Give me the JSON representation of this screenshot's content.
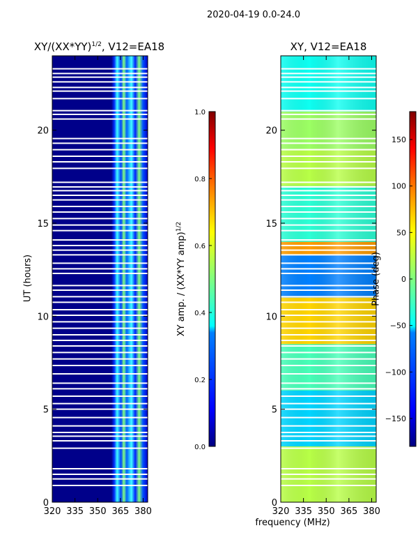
{
  "figure_title": "2020-04-19 0.0-24.0",
  "colors": {
    "jet_stops": [
      "#000080",
      "#0000ff",
      "#0080ff",
      "#00ffff",
      "#80ff80",
      "#ffff00",
      "#ff8000",
      "#ff0000",
      "#800000"
    ],
    "background": "#ffffff",
    "frame": "#000000",
    "flag": "#ffffff"
  },
  "chart_data": [
    {
      "type": "heatmap",
      "title_main": "XY/(XX*YY)",
      "title_sup": "1/2",
      "title_rest": ", V12=EA18",
      "xlabel": "",
      "ylabel": "UT (hours)",
      "xlim": [
        320,
        383
      ],
      "ylim": [
        0,
        24
      ],
      "xticks": [
        320,
        335,
        350,
        365,
        380
      ],
      "yticks": [
        0,
        5,
        10,
        15,
        20
      ],
      "colorbar": {
        "label_main": "XY amp. / (XX*YY amp)",
        "label_sup": "1/2",
        "vmin": 0.0,
        "vmax": 1.0,
        "ticks": [
          "0.0",
          "0.2",
          "0.4",
          "0.6",
          "0.8",
          "1.0"
        ]
      },
      "description_values": {
        "background_level": 0.05,
        "high_band_MHz": [
          360,
          383
        ],
        "high_band_typical": 0.3
      }
    },
    {
      "type": "heatmap",
      "title": "XY, V12=EA18",
      "xlabel": "frequency (MHz)",
      "ylabel": "",
      "xlim": [
        320,
        383
      ],
      "ylim": [
        0,
        24
      ],
      "xticks": [
        320,
        335,
        350,
        365,
        380
      ],
      "yticks": [
        0,
        5,
        10,
        15,
        20
      ],
      "colorbar": {
        "label": "Phase (deg)",
        "vmin": -180,
        "vmax": 180,
        "ticks": [
          "−150",
          "−100",
          "−50",
          "0",
          "50",
          "100",
          "150"
        ],
        "tick_values": [
          -150,
          -100,
          -50,
          0,
          50,
          100,
          150
        ]
      },
      "description_values": {
        "phase_bands_hours": [
          [
            0,
            3,
            20
          ],
          [
            3,
            6,
            -60
          ],
          [
            6,
            8.5,
            -20
          ],
          [
            8.5,
            11,
            60
          ],
          [
            11,
            13.3,
            -90
          ],
          [
            13.3,
            14,
            80
          ],
          [
            14,
            17,
            -30
          ],
          [
            17,
            19,
            20
          ],
          [
            19,
            21,
            10
          ],
          [
            21,
            24,
            -40
          ]
        ]
      }
    }
  ],
  "flagged_hours": [
    0.9,
    1.25,
    1.5,
    1.8,
    2.9,
    3.3,
    3.55,
    3.75,
    4.1,
    4.55,
    5.0,
    5.3,
    5.7,
    6.1,
    6.4,
    6.9,
    7.35,
    7.7,
    8.05,
    8.4,
    8.7,
    9.0,
    9.35,
    9.7,
    10.05,
    10.35,
    10.75,
    11.05,
    11.4,
    11.65,
    12.3,
    12.55,
    12.85,
    13.3,
    13.55,
    13.8,
    14.1,
    14.6,
    14.9,
    15.25,
    15.6,
    15.9,
    16.25,
    16.5,
    16.75,
    16.95,
    17.2,
    17.95,
    18.3,
    18.6,
    18.95,
    19.3,
    19.55,
    20.6,
    20.85,
    21.05,
    21.7,
    22.1,
    22.3,
    22.6,
    22.85,
    23.05,
    23.3
  ]
}
